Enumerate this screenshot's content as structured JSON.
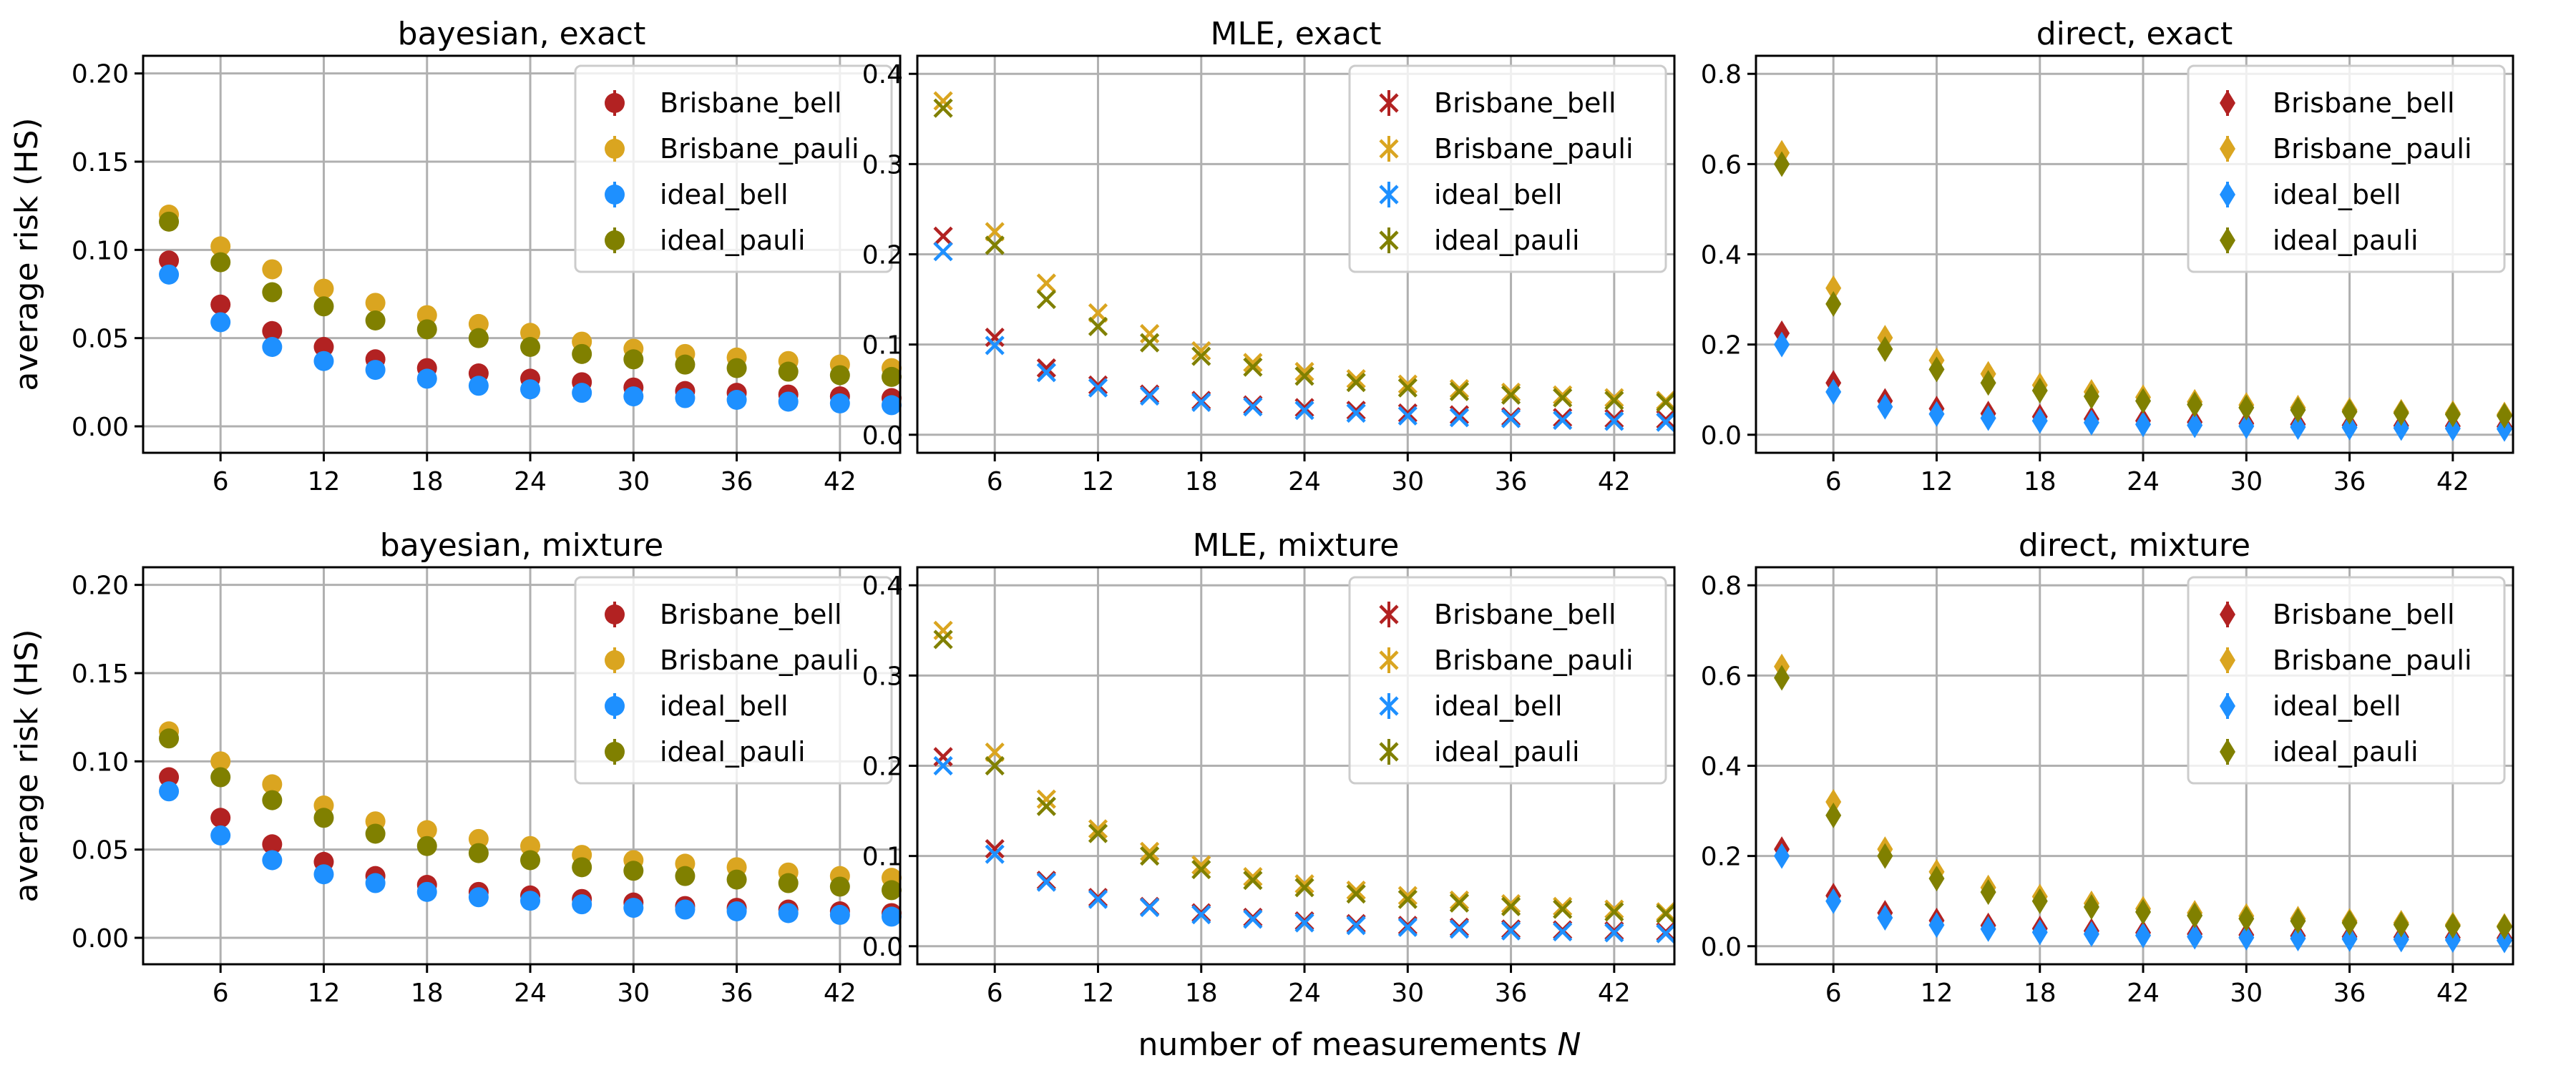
{
  "figure": {
    "ylabel": "average risk (HS)",
    "xlabel_text": "number of measurements ",
    "xlabel_var": "N"
  },
  "colors": {
    "Brisbane_bell": "#b22222",
    "Brisbane_pauli": "#daa520",
    "ideal_bell": "#1e90ff",
    "ideal_pauli": "#808000"
  },
  "chart_data": [
    {
      "type": "scatter",
      "title": "bayesian, exact",
      "marker": "circle",
      "ylim": [
        -0.015,
        0.21
      ],
      "yticks": [
        0.0,
        0.05,
        0.1,
        0.15,
        0.2
      ],
      "ytick_labels": [
        "0.00",
        "0.05",
        "0.10",
        "0.15",
        "0.20"
      ],
      "xlim": [
        1.5,
        45.5
      ],
      "xticks": [
        6,
        12,
        18,
        24,
        30,
        36,
        42
      ],
      "xtick_labels": [
        "6",
        "12",
        "18",
        "24",
        "30",
        "36",
        "42"
      ],
      "xlabel": "",
      "ylabel": "average risk (HS)",
      "grid": true,
      "legend_position": "top-right",
      "x": [
        3,
        6,
        9,
        12,
        15,
        18,
        21,
        24,
        27,
        30,
        33,
        36,
        39,
        42,
        45
      ],
      "series": [
        {
          "name": "Brisbane_bell",
          "values": [
            0.094,
            0.069,
            0.054,
            0.045,
            0.038,
            0.033,
            0.03,
            0.027,
            0.025,
            0.022,
            0.02,
            0.019,
            0.018,
            0.017,
            0.016
          ]
        },
        {
          "name": "Brisbane_pauli",
          "values": [
            0.12,
            0.102,
            0.089,
            0.078,
            0.07,
            0.063,
            0.058,
            0.053,
            0.048,
            0.044,
            0.041,
            0.039,
            0.037,
            0.035,
            0.033
          ]
        },
        {
          "name": "ideal_bell",
          "values": [
            0.086,
            0.059,
            0.045,
            0.037,
            0.032,
            0.027,
            0.023,
            0.021,
            0.019,
            0.017,
            0.016,
            0.015,
            0.014,
            0.013,
            0.012
          ]
        },
        {
          "name": "ideal_pauli",
          "values": [
            0.116,
            0.093,
            0.076,
            0.068,
            0.06,
            0.055,
            0.05,
            0.045,
            0.041,
            0.038,
            0.035,
            0.033,
            0.031,
            0.029,
            0.028
          ]
        }
      ]
    },
    {
      "type": "scatter",
      "title": "MLE, exact",
      "marker": "x",
      "ylim": [
        -0.02,
        0.42
      ],
      "yticks": [
        0.0,
        0.1,
        0.2,
        0.3,
        0.4
      ],
      "ytick_labels": [
        "0.0",
        "0.1",
        "0.2",
        "0.3",
        "0.4"
      ],
      "xlim": [
        1.5,
        45.5
      ],
      "xticks": [
        6,
        12,
        18,
        24,
        30,
        36,
        42
      ],
      "xtick_labels": [
        "6",
        "12",
        "18",
        "24",
        "30",
        "36",
        "42"
      ],
      "xlabel": "",
      "ylabel": "",
      "grid": true,
      "legend_position": "top-right",
      "x": [
        3,
        6,
        9,
        12,
        15,
        18,
        21,
        24,
        27,
        30,
        33,
        36,
        39,
        42,
        45
      ],
      "series": [
        {
          "name": "Brisbane_bell",
          "values": [
            0.22,
            0.108,
            0.074,
            0.055,
            0.045,
            0.038,
            0.033,
            0.03,
            0.027,
            0.024,
            0.022,
            0.02,
            0.019,
            0.018,
            0.017
          ]
        },
        {
          "name": "Brisbane_pauli",
          "values": [
            0.37,
            0.225,
            0.168,
            0.135,
            0.112,
            0.093,
            0.08,
            0.07,
            0.062,
            0.056,
            0.051,
            0.047,
            0.044,
            0.041,
            0.038
          ]
        },
        {
          "name": "ideal_bell",
          "values": [
            0.203,
            0.099,
            0.069,
            0.052,
            0.043,
            0.036,
            0.031,
            0.027,
            0.024,
            0.021,
            0.019,
            0.018,
            0.016,
            0.015,
            0.014
          ]
        },
        {
          "name": "ideal_pauli",
          "values": [
            0.362,
            0.21,
            0.15,
            0.12,
            0.102,
            0.087,
            0.075,
            0.065,
            0.058,
            0.052,
            0.048,
            0.044,
            0.041,
            0.038,
            0.036
          ]
        }
      ]
    },
    {
      "type": "scatter",
      "title": "direct, exact",
      "marker": "diamond",
      "ylim": [
        -0.04,
        0.84
      ],
      "yticks": [
        0.0,
        0.2,
        0.4,
        0.6,
        0.8
      ],
      "ytick_labels": [
        "0.0",
        "0.2",
        "0.4",
        "0.6",
        "0.8"
      ],
      "xlim": [
        1.5,
        45.5
      ],
      "xticks": [
        6,
        12,
        18,
        24,
        30,
        36,
        42
      ],
      "xtick_labels": [
        "6",
        "12",
        "18",
        "24",
        "30",
        "36",
        "42"
      ],
      "xlabel": "",
      "ylabel": "",
      "grid": true,
      "legend_position": "top-right",
      "x": [
        3,
        6,
        9,
        12,
        15,
        18,
        21,
        24,
        27,
        30,
        33,
        36,
        39,
        42,
        45
      ],
      "series": [
        {
          "name": "Brisbane_bell",
          "values": [
            0.225,
            0.115,
            0.075,
            0.058,
            0.047,
            0.04,
            0.035,
            0.031,
            0.028,
            0.025,
            0.023,
            0.021,
            0.02,
            0.019,
            0.018
          ]
        },
        {
          "name": "Brisbane_pauli",
          "values": [
            0.625,
            0.325,
            0.215,
            0.165,
            0.135,
            0.11,
            0.095,
            0.083,
            0.073,
            0.066,
            0.06,
            0.055,
            0.051,
            0.048,
            0.045
          ]
        },
        {
          "name": "ideal_bell",
          "values": [
            0.2,
            0.095,
            0.062,
            0.046,
            0.037,
            0.031,
            0.027,
            0.023,
            0.021,
            0.019,
            0.017,
            0.016,
            0.015,
            0.014,
            0.013
          ]
        },
        {
          "name": "ideal_pauli",
          "values": [
            0.6,
            0.29,
            0.19,
            0.145,
            0.115,
            0.098,
            0.085,
            0.075,
            0.067,
            0.06,
            0.055,
            0.051,
            0.048,
            0.045,
            0.042
          ]
        }
      ]
    },
    {
      "type": "scatter",
      "title": "bayesian, mixture",
      "marker": "circle",
      "ylim": [
        -0.015,
        0.21
      ],
      "yticks": [
        0.0,
        0.05,
        0.1,
        0.15,
        0.2
      ],
      "ytick_labels": [
        "0.00",
        "0.05",
        "0.10",
        "0.15",
        "0.20"
      ],
      "xlim": [
        1.5,
        45.5
      ],
      "xticks": [
        6,
        12,
        18,
        24,
        30,
        36,
        42
      ],
      "xtick_labels": [
        "6",
        "12",
        "18",
        "24",
        "30",
        "36",
        "42"
      ],
      "xlabel": "",
      "ylabel": "average risk (HS)",
      "grid": true,
      "legend_position": "top-right",
      "x": [
        3,
        6,
        9,
        12,
        15,
        18,
        21,
        24,
        27,
        30,
        33,
        36,
        39,
        42,
        45
      ],
      "series": [
        {
          "name": "Brisbane_bell",
          "values": [
            0.091,
            0.068,
            0.053,
            0.043,
            0.035,
            0.03,
            0.026,
            0.024,
            0.022,
            0.02,
            0.018,
            0.017,
            0.016,
            0.015,
            0.014
          ]
        },
        {
          "name": "Brisbane_pauli",
          "values": [
            0.117,
            0.1,
            0.087,
            0.075,
            0.066,
            0.061,
            0.056,
            0.052,
            0.047,
            0.044,
            0.042,
            0.04,
            0.037,
            0.035,
            0.034
          ]
        },
        {
          "name": "ideal_bell",
          "values": [
            0.083,
            0.058,
            0.044,
            0.036,
            0.031,
            0.026,
            0.023,
            0.021,
            0.019,
            0.017,
            0.016,
            0.015,
            0.014,
            0.013,
            0.012
          ]
        },
        {
          "name": "ideal_pauli",
          "values": [
            0.113,
            0.091,
            0.078,
            0.068,
            0.059,
            0.052,
            0.048,
            0.044,
            0.04,
            0.038,
            0.035,
            0.033,
            0.031,
            0.029,
            0.027
          ]
        }
      ]
    },
    {
      "type": "scatter",
      "title": "MLE, mixture",
      "marker": "x",
      "ylim": [
        -0.02,
        0.42
      ],
      "yticks": [
        0.0,
        0.1,
        0.2,
        0.3,
        0.4
      ],
      "ytick_labels": [
        "0.0",
        "0.1",
        "0.2",
        "0.3",
        "0.4"
      ],
      "xlim": [
        1.5,
        45.5
      ],
      "xticks": [
        6,
        12,
        18,
        24,
        30,
        36,
        42
      ],
      "xtick_labels": [
        "6",
        "12",
        "18",
        "24",
        "30",
        "36",
        "42"
      ],
      "xlabel": "number of measurements N",
      "ylabel": "",
      "grid": true,
      "legend_position": "top-right",
      "x": [
        3,
        6,
        9,
        12,
        15,
        18,
        21,
        24,
        27,
        30,
        33,
        36,
        39,
        42,
        45
      ],
      "series": [
        {
          "name": "Brisbane_bell",
          "values": [
            0.21,
            0.108,
            0.073,
            0.054,
            0.044,
            0.037,
            0.032,
            0.028,
            0.025,
            0.023,
            0.021,
            0.019,
            0.018,
            0.017,
            0.016
          ]
        },
        {
          "name": "Brisbane_pauli",
          "values": [
            0.35,
            0.215,
            0.163,
            0.13,
            0.105,
            0.09,
            0.077,
            0.069,
            0.062,
            0.056,
            0.051,
            0.047,
            0.044,
            0.041,
            0.038
          ]
        },
        {
          "name": "ideal_bell",
          "values": [
            0.2,
            0.102,
            0.071,
            0.052,
            0.043,
            0.035,
            0.03,
            0.026,
            0.023,
            0.021,
            0.019,
            0.017,
            0.016,
            0.015,
            0.014
          ]
        },
        {
          "name": "ideal_pauli",
          "values": [
            0.34,
            0.2,
            0.155,
            0.125,
            0.1,
            0.085,
            0.073,
            0.065,
            0.058,
            0.052,
            0.048,
            0.044,
            0.041,
            0.038,
            0.036
          ]
        }
      ]
    },
    {
      "type": "scatter",
      "title": "direct, mixture",
      "marker": "diamond",
      "ylim": [
        -0.04,
        0.84
      ],
      "yticks": [
        0.0,
        0.2,
        0.4,
        0.6,
        0.8
      ],
      "ytick_labels": [
        "0.0",
        "0.2",
        "0.4",
        "0.6",
        "0.8"
      ],
      "xlim": [
        1.5,
        45.5
      ],
      "xticks": [
        6,
        12,
        18,
        24,
        30,
        36,
        42
      ],
      "xtick_labels": [
        "6",
        "12",
        "18",
        "24",
        "30",
        "36",
        "42"
      ],
      "xlabel": "",
      "ylabel": "",
      "grid": true,
      "legend_position": "top-right",
      "x": [
        3,
        6,
        9,
        12,
        15,
        18,
        21,
        24,
        27,
        30,
        33,
        36,
        39,
        42,
        45
      ],
      "series": [
        {
          "name": "Brisbane_bell",
          "values": [
            0.215,
            0.112,
            0.074,
            0.057,
            0.046,
            0.039,
            0.034,
            0.03,
            0.027,
            0.025,
            0.023,
            0.021,
            0.02,
            0.019,
            0.018
          ]
        },
        {
          "name": "Brisbane_pauli",
          "values": [
            0.62,
            0.32,
            0.215,
            0.165,
            0.13,
            0.11,
            0.095,
            0.083,
            0.074,
            0.067,
            0.061,
            0.056,
            0.052,
            0.048,
            0.045
          ]
        },
        {
          "name": "ideal_bell",
          "values": [
            0.2,
            0.1,
            0.063,
            0.047,
            0.038,
            0.031,
            0.027,
            0.024,
            0.021,
            0.019,
            0.017,
            0.016,
            0.015,
            0.014,
            0.013
          ]
        },
        {
          "name": "ideal_pauli",
          "values": [
            0.595,
            0.29,
            0.2,
            0.15,
            0.12,
            0.1,
            0.087,
            0.076,
            0.068,
            0.061,
            0.056,
            0.052,
            0.048,
            0.045,
            0.043
          ]
        }
      ]
    }
  ]
}
